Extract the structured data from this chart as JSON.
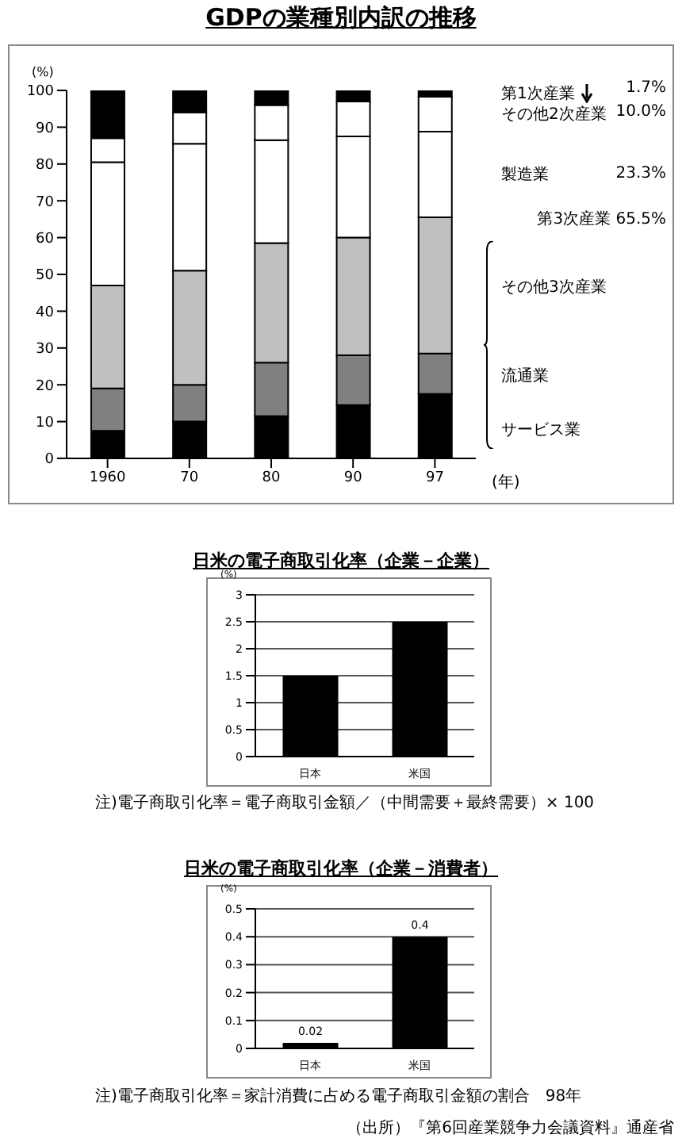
{
  "chart_data": [
    {
      "type": "bar",
      "title": "GDPの業種別内訳の推移",
      "categories": [
        "1960",
        "70",
        "80",
        "90",
        "97"
      ],
      "stacked": true,
      "xlabel": "(年)",
      "ylabel": "(%)",
      "ylim": [
        0,
        100
      ],
      "yticks": [
        0,
        10,
        20,
        30,
        40,
        50,
        60,
        70,
        80,
        90,
        100
      ],
      "legend": "right",
      "series": [
        {
          "name": "サービス業",
          "color": "#000000",
          "values": [
            7.5,
            10,
            11.5,
            14.5,
            17.5
          ]
        },
        {
          "name": "流通業",
          "color": "#808080",
          "values": [
            11.5,
            10,
            14.5,
            13.5,
            11
          ]
        },
        {
          "name": "その他3次産業",
          "color": "#c0c0c0",
          "values": [
            28,
            31,
            32.5,
            32,
            37
          ]
        },
        {
          "name": "製造業",
          "color": "#ffffff",
          "values": [
            33.5,
            34.5,
            28,
            27.5,
            23.3
          ]
        },
        {
          "name": "その他2次産業",
          "color": "#ffffff",
          "values": [
            6.5,
            8.5,
            9.5,
            9.5,
            9.5
          ]
        },
        {
          "name": "第1次産業",
          "color": "#000000",
          "values": [
            13,
            6,
            4,
            3,
            1.7
          ]
        }
      ],
      "annotations": [
        "1.7%",
        "10.0%",
        "23.3%",
        "第3次産業 65.5%"
      ]
    },
    {
      "type": "bar",
      "title": "日米の電子商取引化率（企業－企業）",
      "categories": [
        "日本",
        "米国"
      ],
      "values": [
        1.5,
        2.5
      ],
      "color": "#000000",
      "ylabel": "(%)",
      "ylim": [
        0,
        3
      ],
      "yticks": [
        0,
        0.5,
        1,
        1.5,
        2,
        2.5,
        3
      ],
      "grid": "y",
      "annotations": [
        "注)電子商取引化率＝電子商取引金額／（中間需要＋最終需要）× 100"
      ]
    },
    {
      "type": "bar",
      "title": "日米の電子商取引化率（企業－消費者）",
      "categories": [
        "日本",
        "米国"
      ],
      "values": [
        0.02,
        0.4
      ],
      "color": "#000000",
      "ylabel": "(%)",
      "ylim": [
        0,
        0.5
      ],
      "yticks": [
        0,
        0.1,
        0.2,
        0.3,
        0.4,
        0.5
      ],
      "grid": "y",
      "data_labels": true,
      "annotations": [
        "注)電子商取引化率＝家計消費に占める電子商取引金額の割合　98年",
        "（出所）『第6回産業競争力会議資料』通産省"
      ]
    }
  ]
}
